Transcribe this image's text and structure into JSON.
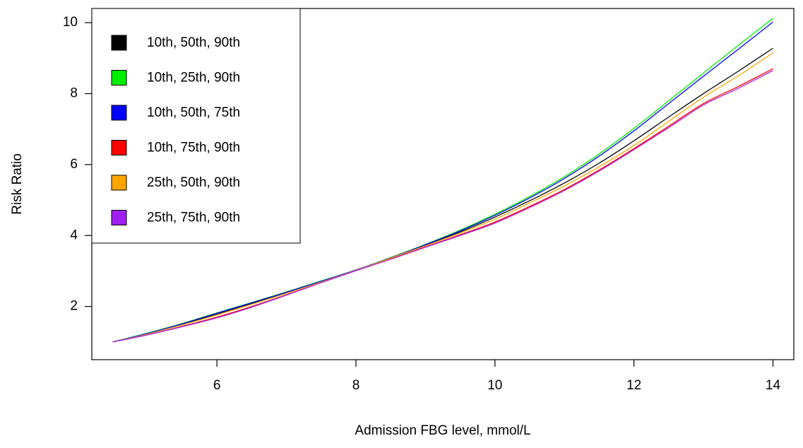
{
  "chart_data": {
    "type": "line",
    "title": "",
    "xlabel": "Admission FBG level, mmol/L",
    "ylabel": "Risk Ratio",
    "xlim": [
      4.2,
      14.3
    ],
    "ylim": [
      0.5,
      10.4
    ],
    "xticks": [
      6,
      8,
      10,
      12,
      14
    ],
    "yticks": [
      2,
      4,
      6,
      8,
      10
    ],
    "grid": false,
    "legend_position": "top-left",
    "x": [
      4.5,
      5,
      5.5,
      6,
      6.5,
      7,
      7.5,
      8,
      8.5,
      9,
      9.5,
      10,
      10.5,
      11,
      11.5,
      12,
      12.5,
      13,
      13.5,
      14
    ],
    "series": [
      {
        "name": "10th, 50th, 90th",
        "color": "#000000",
        "values": [
          1.0,
          1.23,
          1.5,
          1.78,
          2.08,
          2.38,
          2.7,
          3.02,
          3.37,
          3.73,
          4.1,
          4.52,
          4.98,
          5.48,
          6.04,
          6.67,
          7.34,
          8.0,
          8.63,
          9.28
        ]
      },
      {
        "name": "10th, 25th, 90th",
        "color": "#00ee00",
        "values": [
          1.0,
          1.25,
          1.52,
          1.82,
          2.11,
          2.41,
          2.72,
          3.03,
          3.38,
          3.75,
          4.15,
          4.6,
          5.1,
          5.66,
          6.3,
          7.02,
          7.8,
          8.58,
          9.36,
          10.12
        ]
      },
      {
        "name": "10th, 50th, 75th",
        "color": "#0000ff",
        "values": [
          1.0,
          1.24,
          1.51,
          1.81,
          2.1,
          2.4,
          2.71,
          3.03,
          3.37,
          3.74,
          4.13,
          4.57,
          5.06,
          5.61,
          6.24,
          6.95,
          7.72,
          8.49,
          9.25,
          10.02
        ]
      },
      {
        "name": "10th, 75th, 90th",
        "color": "#ff0000",
        "values": [
          1.0,
          1.2,
          1.44,
          1.7,
          2.0,
          2.33,
          2.67,
          3.01,
          3.34,
          3.68,
          4.02,
          4.38,
          4.82,
          5.3,
          5.85,
          6.45,
          7.08,
          7.72,
          8.2,
          8.7
        ]
      },
      {
        "name": "25th, 50th, 90th",
        "color": "#ffa500",
        "values": [
          1.0,
          1.22,
          1.48,
          1.76,
          2.06,
          2.37,
          2.69,
          3.02,
          3.36,
          3.71,
          4.07,
          4.46,
          4.92,
          5.4,
          5.94,
          6.54,
          7.22,
          7.9,
          8.5,
          9.15
        ]
      },
      {
        "name": "25th, 75th, 90th",
        "color": "#a020f0",
        "values": [
          1.0,
          1.2,
          1.43,
          1.68,
          1.98,
          2.32,
          2.67,
          3.01,
          3.33,
          3.67,
          4.0,
          4.35,
          4.79,
          5.27,
          5.82,
          6.42,
          7.04,
          7.68,
          8.15,
          8.65
        ]
      }
    ]
  }
}
